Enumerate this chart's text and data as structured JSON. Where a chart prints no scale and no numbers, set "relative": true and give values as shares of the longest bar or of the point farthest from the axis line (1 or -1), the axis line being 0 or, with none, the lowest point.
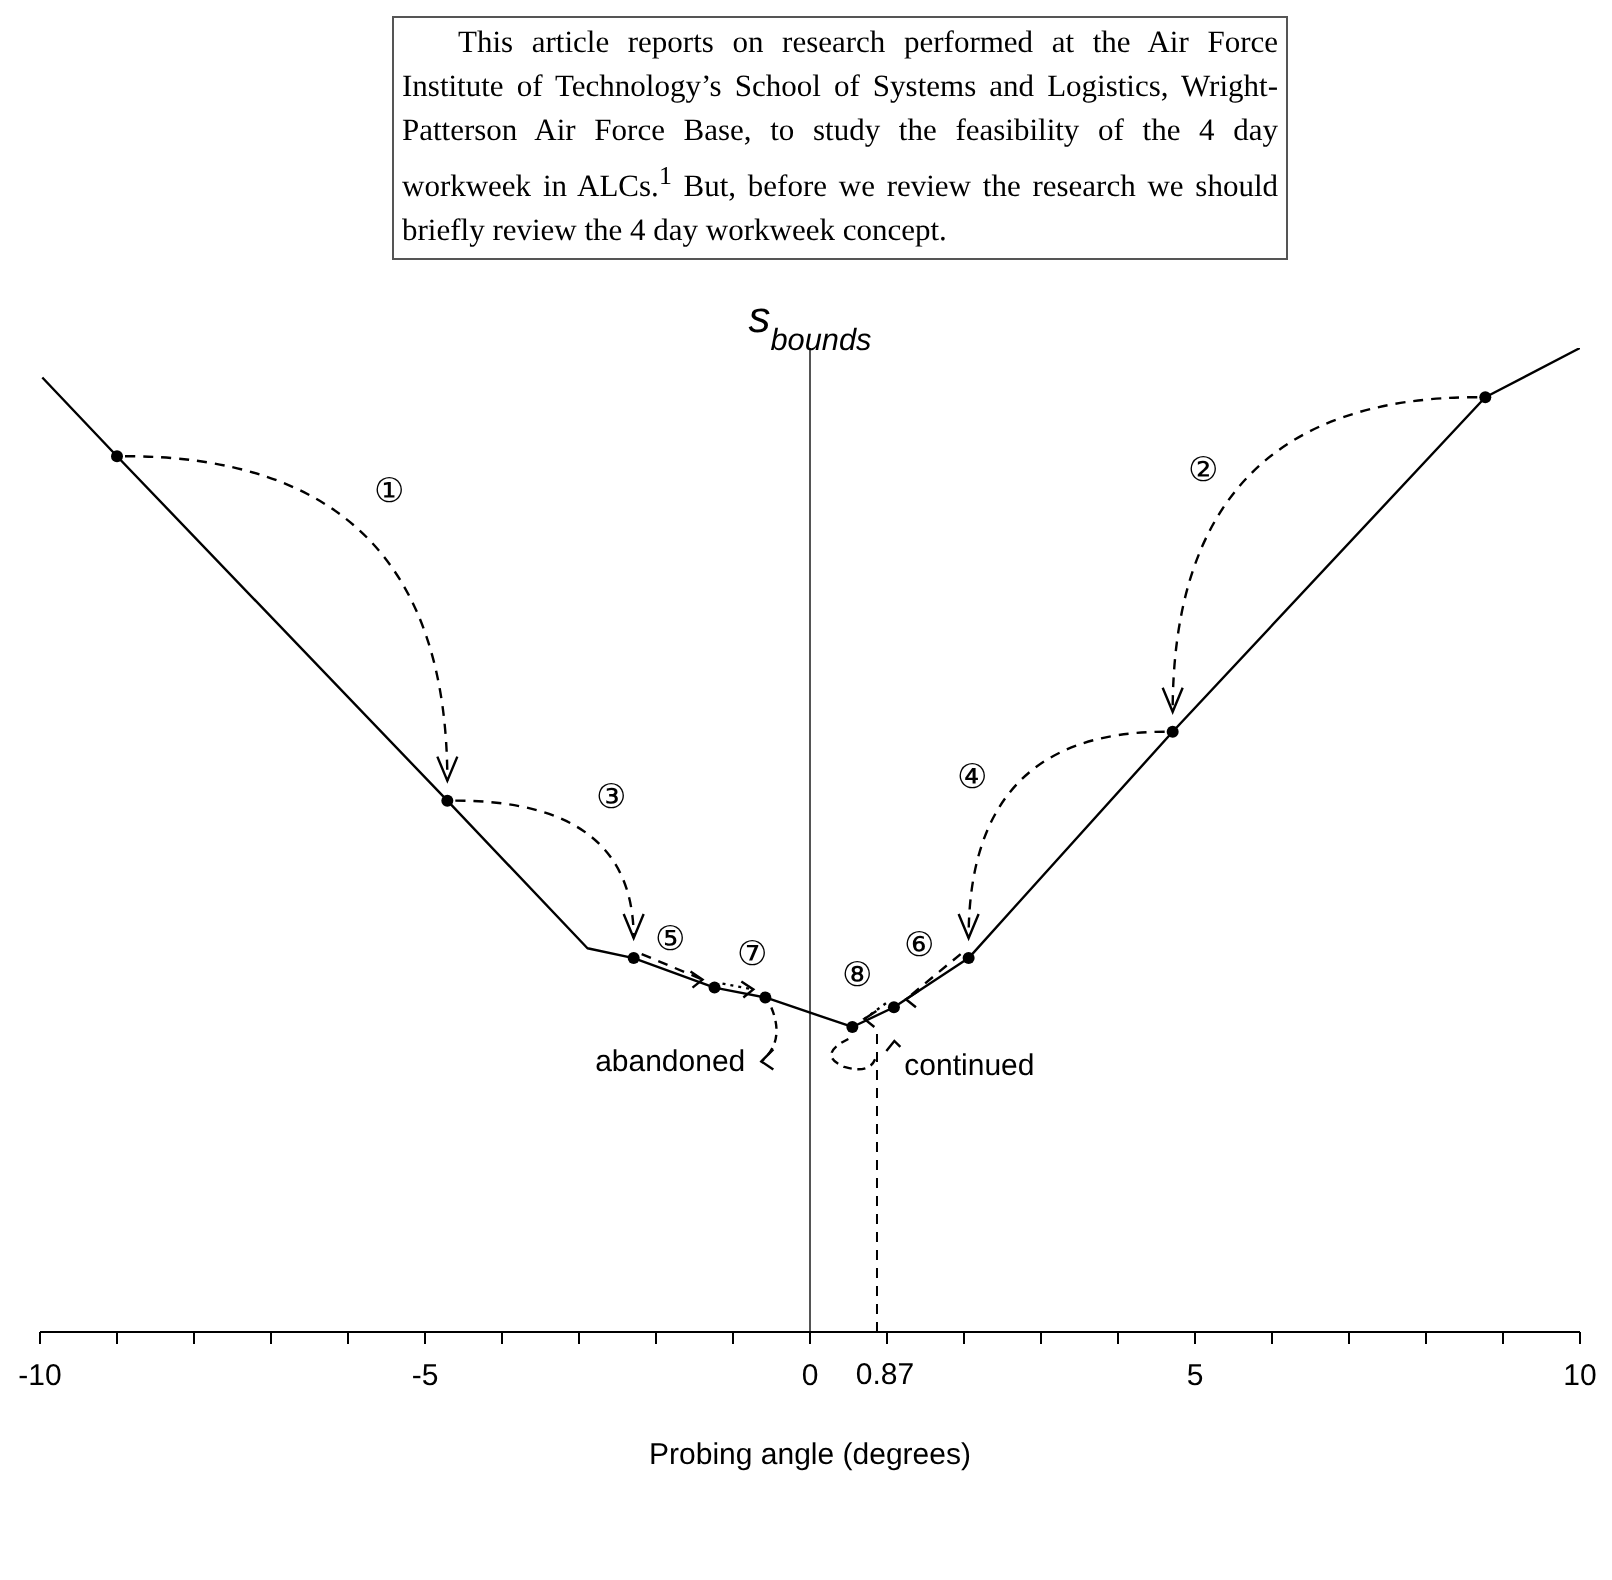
{
  "chart_data": {
    "type": "line",
    "relative": true,
    "xlabel": "Probing angle (degrees)",
    "xlim": [
      -10,
      10
    ],
    "xticks": [
      -10,
      {
        "value": -9,
        "label": null
      },
      {
        "value": -8,
        "label": null
      },
      {
        "value": -7,
        "label": null
      },
      {
        "value": -6,
        "label": null
      },
      -5,
      {
        "value": -4,
        "label": null
      },
      {
        "value": -3,
        "label": null
      },
      {
        "value": -2,
        "label": null
      },
      {
        "value": -1,
        "label": null
      },
      0,
      {
        "value": 1,
        "label": null
      },
      {
        "value": 2,
        "label": null
      },
      {
        "value": 3,
        "label": null
      },
      {
        "value": 4,
        "label": null
      },
      5,
      {
        "value": 6,
        "label": null
      },
      {
        "value": 7,
        "label": null
      },
      {
        "value": 8,
        "label": null
      },
      {
        "value": 9,
        "label": null
      },
      10
    ],
    "series": [
      {
        "color": "#000000",
        "marker": "none",
        "x": [
          -9.97,
          -9.0,
          -4.71,
          -2.89,
          -2.29,
          -1.24,
          -0.58,
          0.55,
          1.09,
          2.06,
          4.71,
          8.77,
          10
        ],
        "values": [
          0.97,
          0.89,
          0.54,
          0.39,
          0.38,
          0.35,
          0.34,
          0.31,
          0.33,
          0.38,
          0.61,
          0.95,
          1.0
        ]
      },
      {
        "type": "scatter",
        "color": "#000000",
        "marker": "circle",
        "x": [
          -9.0,
          -4.71,
          -2.29,
          -1.24,
          -0.58,
          0.55,
          1.09,
          2.06,
          4.71,
          8.77
        ],
        "values": [
          0.89,
          0.54,
          0.38,
          0.35,
          0.34,
          0.31,
          0.33,
          0.38,
          0.61,
          0.95
        ]
      }
    ],
    "ref_lines": [
      {
        "axis": "x",
        "value": 0,
        "label": "s$_{bounds}$",
        "color": "#555555",
        "line_style": "solid"
      },
      {
        "axis": "x",
        "value": 0.87,
        "label": "0.87",
        "color": "#000000",
        "line_style": "dashed"
      }
    ],
    "annotations": [
      "①",
      "②",
      "③",
      "④",
      "⑤",
      "⑥",
      "⑦",
      "⑧",
      "abandoned",
      "continued",
      "This article reports on research performed at the Air Force Institute of Technology’s School of Systems and Logistics, Wright-Patterson Air Force Base, to study the feasibility of the 4 day workweek in ALCs.$^{1}$ But, before we review the research we should briefly review the 4 day workweek concept."
    ]
  }
}
